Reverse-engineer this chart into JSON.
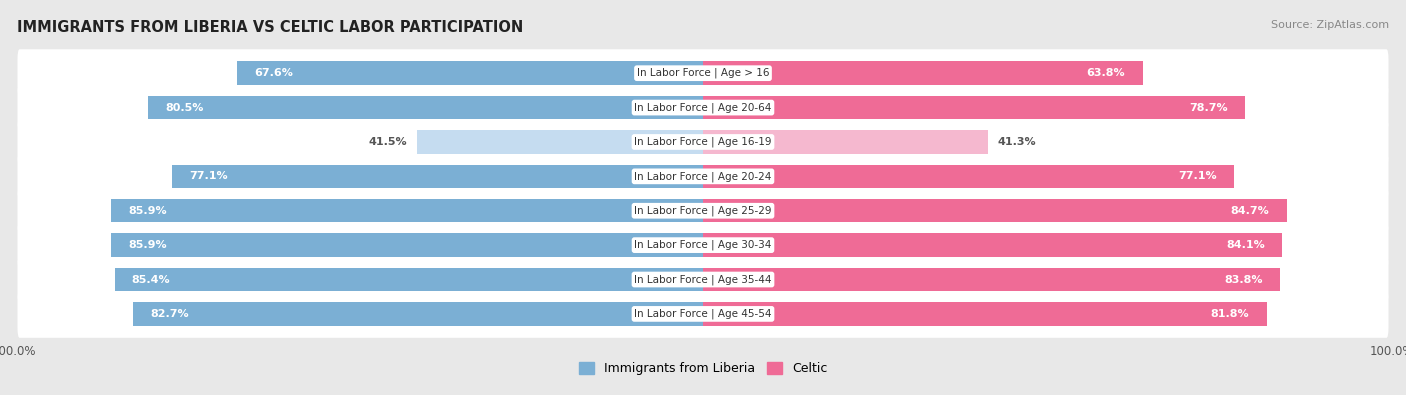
{
  "title": "IMMIGRANTS FROM LIBERIA VS CELTIC LABOR PARTICIPATION",
  "source": "Source: ZipAtlas.com",
  "categories": [
    "In Labor Force | Age > 16",
    "In Labor Force | Age 20-64",
    "In Labor Force | Age 16-19",
    "In Labor Force | Age 20-24",
    "In Labor Force | Age 25-29",
    "In Labor Force | Age 30-34",
    "In Labor Force | Age 35-44",
    "In Labor Force | Age 45-54"
  ],
  "liberia_values": [
    67.6,
    80.5,
    41.5,
    77.1,
    85.9,
    85.9,
    85.4,
    82.7
  ],
  "celtic_values": [
    63.8,
    78.7,
    41.3,
    77.1,
    84.7,
    84.1,
    83.8,
    81.8
  ],
  "liberia_color_strong": "#7BAFD4",
  "liberia_color_light": "#C5DCF0",
  "celtic_color_strong": "#EF6B96",
  "celtic_color_light": "#F5B8CF",
  "bar_height": 0.68,
  "xlim": 100,
  "background_color": "#e8e8e8",
  "threshold": 55,
  "label_value_color_inside": "white",
  "label_value_color_outside": "#555555"
}
